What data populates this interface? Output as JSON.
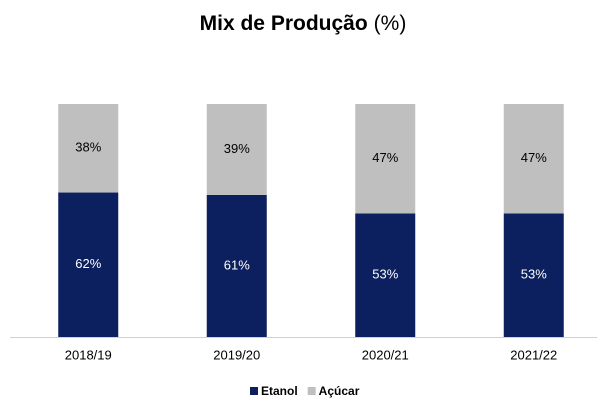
{
  "chart_data": {
    "type": "stacked_bar",
    "title": "Mix de Produção",
    "title_suffix": "(%)",
    "categories": [
      "2018/19",
      "2019/20",
      "2020/21",
      "2021/22"
    ],
    "series": [
      {
        "name": "Etanol",
        "color": "#0c1f5e",
        "label_color": "#ffffff",
        "values": [
          62,
          61,
          53,
          53
        ],
        "value_labels": [
          "62%",
          "61%",
          "53%",
          "53%"
        ]
      },
      {
        "name": "Açúcar",
        "color": "#bfbfbf",
        "label_color": "#000000",
        "values": [
          38,
          39,
          47,
          47
        ],
        "value_labels": [
          "38%",
          "39%",
          "47%",
          "47%"
        ]
      }
    ],
    "ylim": [
      0,
      100
    ],
    "legend": "bottom"
  }
}
